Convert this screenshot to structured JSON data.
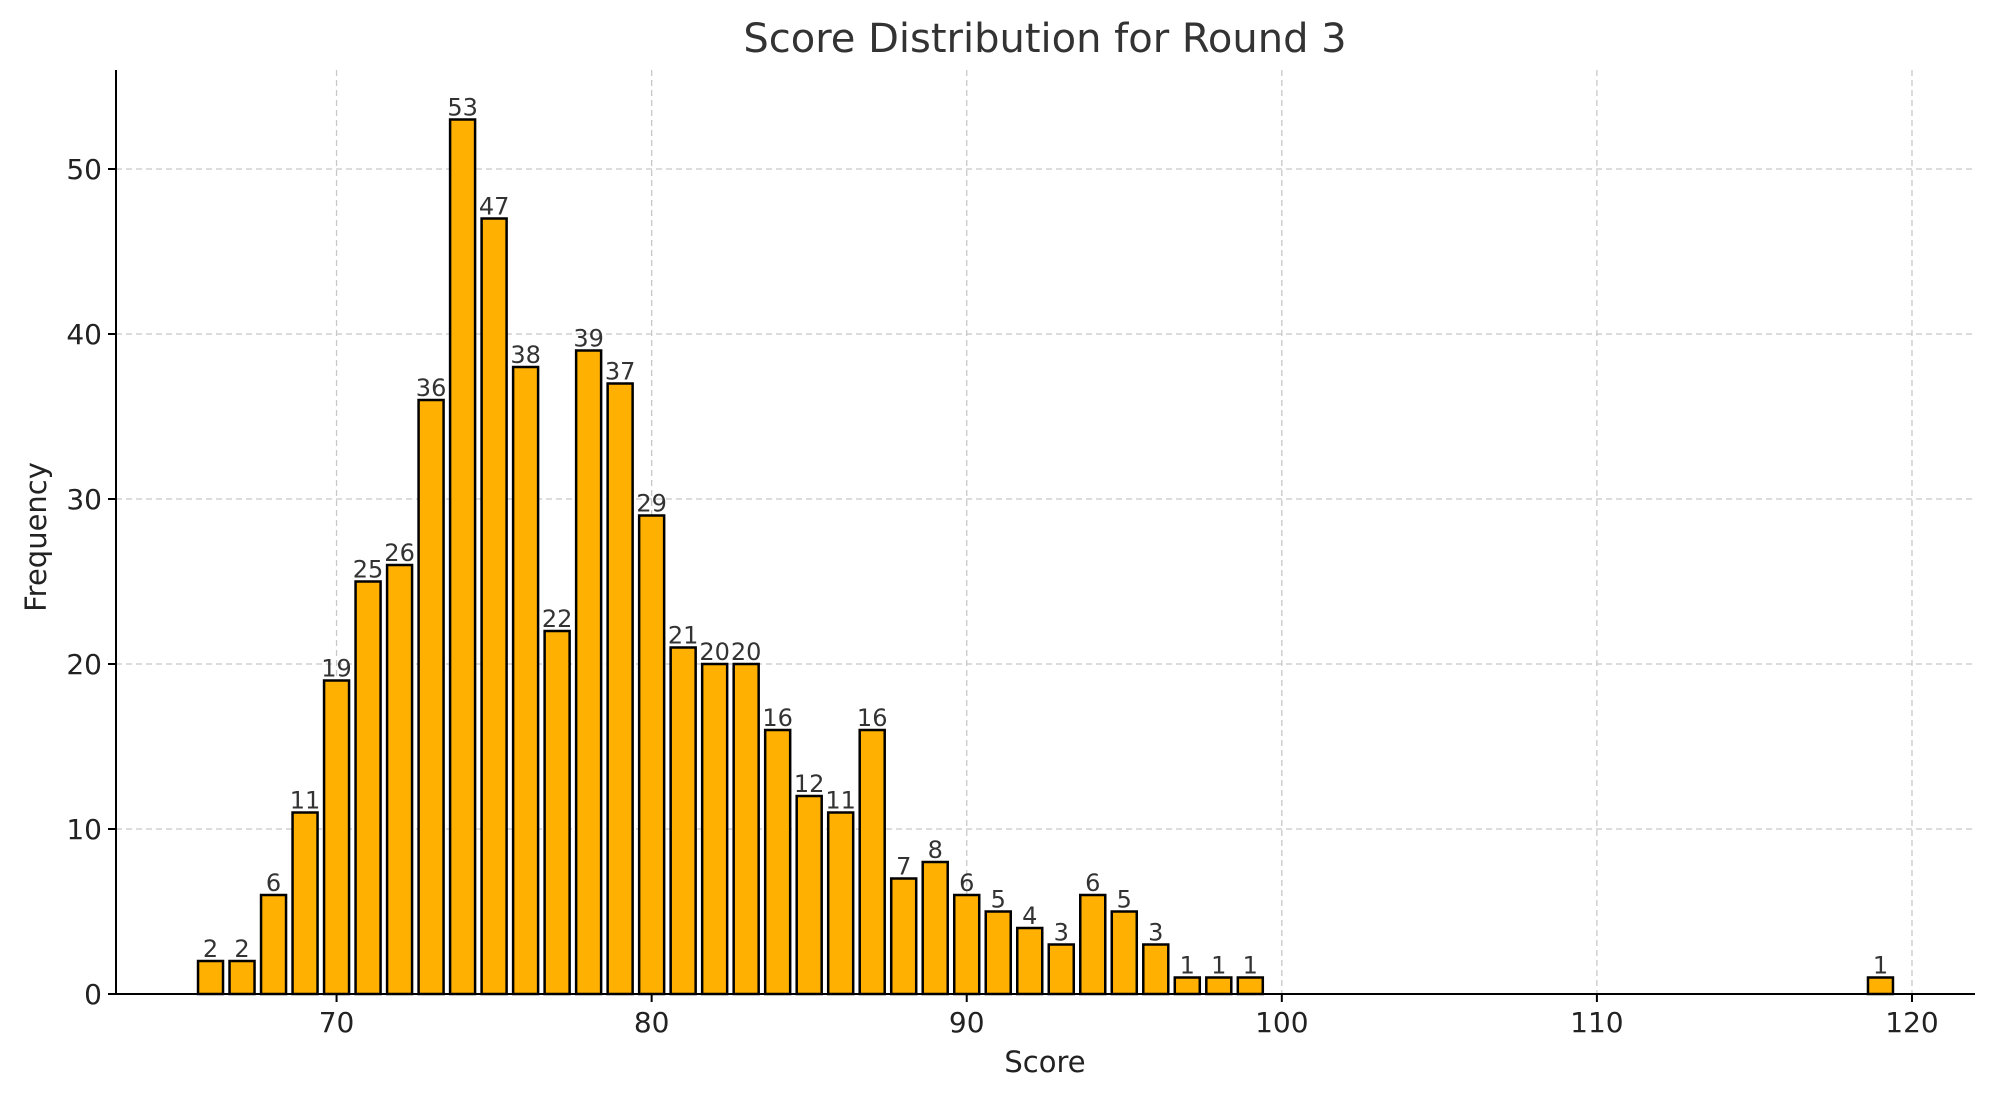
{
  "chart_data": {
    "type": "bar",
    "title": "Score Distribution for Round 3",
    "xlabel": "Score",
    "ylabel": "Frequency",
    "x": [
      66,
      67,
      68,
      69,
      70,
      71,
      72,
      73,
      74,
      75,
      76,
      77,
      78,
      79,
      80,
      81,
      82,
      83,
      84,
      85,
      86,
      87,
      88,
      89,
      90,
      91,
      92,
      93,
      94,
      95,
      96,
      97,
      98,
      99,
      119
    ],
    "values": [
      2,
      2,
      6,
      11,
      19,
      25,
      26,
      36,
      53,
      47,
      38,
      22,
      39,
      37,
      29,
      21,
      20,
      20,
      16,
      12,
      11,
      16,
      7,
      8,
      6,
      5,
      4,
      3,
      6,
      5,
      3,
      1,
      1,
      1,
      1
    ],
    "xlim": [
      63,
      122
    ],
    "ylim": [
      0,
      56
    ],
    "xticks": [
      70,
      80,
      90,
      100,
      110,
      120
    ],
    "yticks": [
      0,
      10,
      20,
      30,
      40,
      50
    ],
    "grid": true,
    "bar_color": "#FFB000",
    "edge_color": "#000000",
    "data_labels": true
  }
}
